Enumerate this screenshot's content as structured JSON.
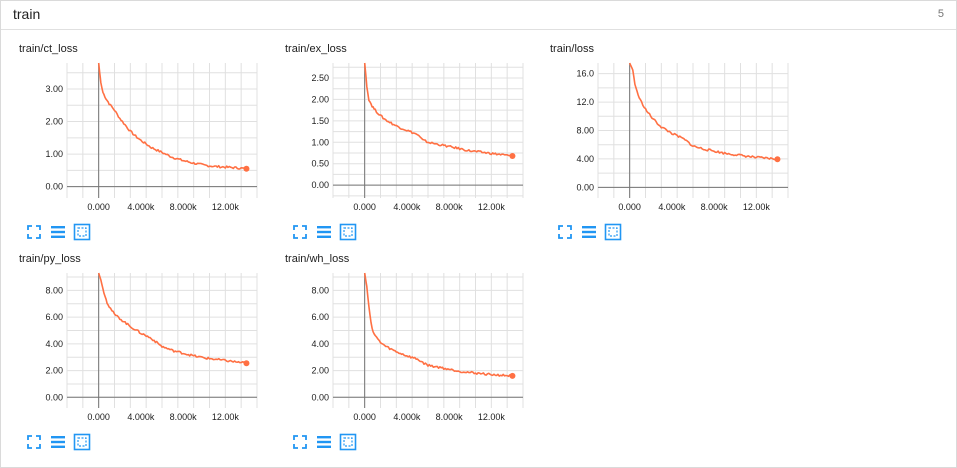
{
  "header": {
    "title": "train",
    "count": "5"
  },
  "colors": {
    "line": "#ff7043",
    "axis": "#757575",
    "grid": "#e0e0e0",
    "icon": "#2196f3"
  },
  "toolbar": {
    "icons": [
      "fit-domain-icon",
      "toggle-log-scale-icon",
      "expand-chart-icon"
    ]
  },
  "chart_data": [
    {
      "type": "line",
      "title": "train/ct_loss",
      "xlim": [
        -3000,
        15000
      ],
      "ylim": [
        -0.35,
        3.8
      ],
      "x_ticks": [
        0,
        4000,
        8000,
        12000
      ],
      "x_tick_labels": [
        "0.000",
        "4.000k",
        "8.000k",
        "12.00k"
      ],
      "y_ticks": [
        0,
        1,
        2,
        3
      ],
      "y_tick_labels": [
        "0.00",
        "1.00",
        "2.00",
        "3.00"
      ],
      "x": [
        0,
        100,
        200,
        400,
        700,
        1000,
        1500,
        2000,
        2500,
        3000,
        3500,
        4000,
        5000,
        6000,
        7000,
        8000,
        9000,
        10000,
        11000,
        12000,
        13000,
        14000
      ],
      "y": [
        3.8,
        3.5,
        3.2,
        2.9,
        2.7,
        2.55,
        2.35,
        2.1,
        1.9,
        1.7,
        1.55,
        1.42,
        1.2,
        1.05,
        0.9,
        0.8,
        0.72,
        0.66,
        0.62,
        0.6,
        0.58,
        0.55
      ]
    },
    {
      "type": "line",
      "title": "train/ex_loss",
      "xlim": [
        -3000,
        15000
      ],
      "ylim": [
        -0.3,
        2.85
      ],
      "x_ticks": [
        0,
        4000,
        8000,
        12000
      ],
      "x_tick_labels": [
        "0.000",
        "4.000k",
        "8.000k",
        "12.00k"
      ],
      "y_ticks": [
        0,
        0.5,
        1,
        1.5,
        2,
        2.5
      ],
      "y_tick_labels": [
        "0.00",
        "0.50",
        "1.00",
        "1.50",
        "2.00",
        "2.50"
      ],
      "x": [
        0,
        100,
        200,
        400,
        700,
        1000,
        1500,
        2000,
        2500,
        3000,
        4000,
        5000,
        5500,
        6000,
        7000,
        8000,
        9000,
        10000,
        11000,
        12000,
        13000,
        14000
      ],
      "y": [
        2.85,
        2.6,
        2.3,
        2.0,
        1.85,
        1.75,
        1.62,
        1.52,
        1.45,
        1.38,
        1.28,
        1.18,
        1.05,
        1.0,
        0.95,
        0.9,
        0.85,
        0.8,
        0.77,
        0.74,
        0.71,
        0.68
      ]
    },
    {
      "type": "line",
      "title": "train/loss",
      "xlim": [
        -3000,
        15000
      ],
      "ylim": [
        -1.5,
        17.5
      ],
      "x_ticks": [
        0,
        4000,
        8000,
        12000
      ],
      "x_tick_labels": [
        "0.000",
        "4.000k",
        "8.000k",
        "12.00k"
      ],
      "y_ticks": [
        0,
        4,
        8,
        12,
        16
      ],
      "y_tick_labels": [
        "0.00",
        "4.00",
        "8.00",
        "12.0",
        "16.0"
      ],
      "x": [
        0,
        300,
        500,
        800,
        1000,
        1500,
        2000,
        2500,
        3000,
        4000,
        5000,
        5500,
        6000,
        7000,
        8000,
        9000,
        10000,
        11000,
        12000,
        13000,
        14000
      ],
      "y": [
        17.5,
        16.5,
        14.5,
        13,
        12.3,
        11,
        10,
        9.2,
        8.5,
        7.6,
        6.9,
        6.4,
        5.8,
        5.4,
        5.1,
        4.8,
        4.6,
        4.4,
        4.2,
        4.1,
        3.95
      ]
    },
    {
      "type": "line",
      "title": "train/py_loss",
      "xlim": [
        -3000,
        15000
      ],
      "ylim": [
        -0.8,
        9.3
      ],
      "x_ticks": [
        0,
        4000,
        8000,
        12000
      ],
      "x_tick_labels": [
        "0.000",
        "4.000k",
        "8.000k",
        "12.00k"
      ],
      "y_ticks": [
        0,
        2,
        4,
        6,
        8
      ],
      "y_tick_labels": [
        "0.00",
        "2.00",
        "4.00",
        "6.00",
        "8.00"
      ],
      "x": [
        0,
        200,
        500,
        800,
        1000,
        1500,
        2000,
        3000,
        4000,
        5000,
        5500,
        6000,
        7000,
        8000,
        9000,
        10000,
        11000,
        12000,
        13000,
        14000
      ],
      "y": [
        9.3,
        8.8,
        7.8,
        7.1,
        6.8,
        6.2,
        5.9,
        5.3,
        4.8,
        4.4,
        4.1,
        3.8,
        3.5,
        3.3,
        3.1,
        2.95,
        2.85,
        2.75,
        2.65,
        2.55
      ]
    },
    {
      "type": "line",
      "title": "train/wh_loss",
      "xlim": [
        -3000,
        15000
      ],
      "ylim": [
        -0.8,
        9.3
      ],
      "x_ticks": [
        0,
        4000,
        8000,
        12000
      ],
      "x_tick_labels": [
        "0.000",
        "4.000k",
        "8.000k",
        "12.00k"
      ],
      "y_ticks": [
        0,
        2,
        4,
        6,
        8
      ],
      "y_tick_labels": [
        "0.00",
        "2.00",
        "4.00",
        "6.00",
        "8.00"
      ],
      "x": [
        0,
        200,
        400,
        600,
        800,
        1000,
        1500,
        2000,
        3000,
        4000,
        5000,
        5500,
        6000,
        7000,
        8000,
        9000,
        10000,
        11000,
        12000,
        13000,
        14000
      ],
      "y": [
        9.3,
        8.3,
        6.8,
        5.6,
        4.9,
        4.6,
        4.1,
        3.8,
        3.4,
        3.1,
        2.85,
        2.6,
        2.4,
        2.25,
        2.1,
        1.95,
        1.85,
        1.78,
        1.7,
        1.65,
        1.6
      ]
    }
  ]
}
